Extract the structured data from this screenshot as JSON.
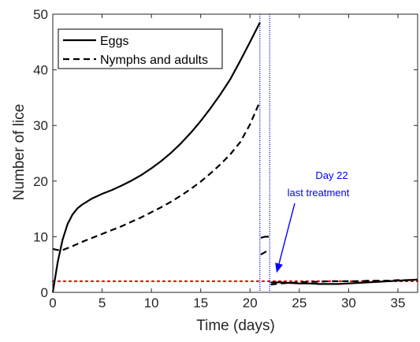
{
  "chart_data": {
    "type": "line",
    "xlabel": "Time (days)",
    "ylabel": "Number of lice",
    "xlim": [
      0,
      37
    ],
    "ylim": [
      0,
      50
    ],
    "x_ticks": [
      0,
      5,
      10,
      15,
      20,
      25,
      30,
      35
    ],
    "y_ticks": [
      0,
      10,
      20,
      30,
      40,
      50
    ],
    "grid": false,
    "legend_position": "top-left",
    "series": [
      {
        "name": "Eggs",
        "style": "solid",
        "color": "#000000",
        "segments": [
          {
            "x": [
              0,
              0.5,
              1,
              1.5,
              2,
              2.5,
              3,
              4,
              5,
              6,
              7,
              8,
              9,
              10,
              11,
              12,
              13,
              14,
              15,
              16,
              17,
              18,
              19,
              20,
              21
            ],
            "y": [
              0,
              5.5,
              9.5,
              12.3,
              14.0,
              15.1,
              15.8,
              16.9,
              17.7,
              18.4,
              19.2,
              20.1,
              21.1,
              22.3,
              23.6,
              25.1,
              26.8,
              28.7,
              30.8,
              33.1,
              35.6,
              38.3,
              41.6,
              45.0,
              48.5
            ]
          },
          {
            "x": [
              21.1,
              21.5,
              21.9
            ],
            "y": [
              9.8,
              10.0,
              10.0
            ]
          },
          {
            "x": [
              22.1,
              23,
              24,
              25,
              26,
              27,
              28,
              29,
              30,
              31,
              32,
              33,
              34,
              35,
              36,
              37
            ],
            "y": [
              1.8,
              1.8,
              1.7,
              1.6,
              1.6,
              1.5,
              1.5,
              1.5,
              1.6,
              1.7,
              1.8,
              1.9,
              2.0,
              2.1,
              2.2,
              2.3
            ]
          }
        ]
      },
      {
        "name": "Nymphs and adults",
        "style": "dashed",
        "color": "#000000",
        "segments": [
          {
            "x": [
              0,
              0.5,
              1,
              2,
              3,
              4,
              5,
              6,
              7,
              8,
              9,
              10,
              11,
              12,
              13,
              14,
              15,
              16,
              17,
              18,
              19,
              20,
              21
            ],
            "y": [
              7.8,
              7.6,
              7.6,
              8.3,
              9.1,
              9.8,
              10.5,
              11.2,
              11.9,
              12.7,
              13.5,
              14.4,
              15.3,
              16.3,
              17.4,
              18.6,
              19.9,
              21.4,
              23.0,
              24.8,
              27.0,
              30.2,
              34.3
            ]
          },
          {
            "x": [
              21.1,
              21.5,
              21.9
            ],
            "y": [
              6.8,
              7.2,
              7.6
            ]
          },
          {
            "x": [
              22.1,
              23,
              24,
              25,
              26,
              27,
              28,
              29,
              30,
              31,
              32,
              33,
              34,
              35,
              36,
              37
            ],
            "y": [
              1.4,
              1.6,
              1.7,
              1.8,
              1.9,
              1.9,
              2.0,
              2.0,
              2.0,
              2.0,
              2.1,
              2.1,
              2.1,
              2.2,
              2.2,
              2.3
            ]
          }
        ]
      }
    ],
    "threshold_line": {
      "y": 2,
      "style": "dotted",
      "color": "#ff0000"
    },
    "treatment_lines": {
      "x": [
        21,
        22
      ],
      "color": "#0000cc"
    },
    "annotation": {
      "lines": [
        "Day 22",
        "last treatment"
      ],
      "color": "#0000ff",
      "arrow_target": {
        "x": 22.7,
        "y": 3.5
      }
    }
  }
}
